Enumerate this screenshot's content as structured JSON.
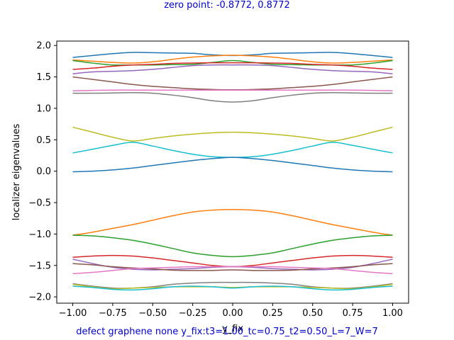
{
  "header": {
    "zero_point": "zero point: -0.8772, 0.8772"
  },
  "footer": {
    "caption": "defect graphene none y_fix:t3=1.00_tc=0.75_t2=0.50_L=7_W=7"
  },
  "colors": {
    "caption": "#0000cc"
  },
  "chart_data": {
    "type": "line",
    "title": "",
    "xlabel": "y_fix",
    "ylabel": "localizer eigenvalues",
    "xlim": [
      -1.1,
      1.1
    ],
    "ylim": [
      -2.1,
      2.07
    ],
    "xticks": [
      -1.0,
      -0.75,
      -0.5,
      -0.25,
      0.0,
      0.25,
      0.5,
      0.75,
      1.0
    ],
    "xtick_labels": [
      "−1.00",
      "−0.75",
      "−0.50",
      "−0.25",
      "0.00",
      "0.25",
      "0.50",
      "0.75",
      "1.00"
    ],
    "yticks": [
      -2.0,
      -1.5,
      -1.0,
      -0.5,
      0.0,
      0.5,
      1.0,
      1.5,
      2.0
    ],
    "ytick_labels": [
      "−2.0",
      "−1.5",
      "−1.0",
      "−0.5",
      "0.0",
      "0.5",
      "1.0",
      "1.5",
      "2.0"
    ],
    "grid": false,
    "legend": "none",
    "x": [
      -1.0,
      -0.875,
      -0.75,
      -0.625,
      -0.5,
      -0.375,
      -0.25,
      -0.125,
      0.0,
      0.125,
      0.25,
      0.375,
      0.5,
      0.625,
      0.75,
      0.875,
      1.0
    ],
    "series": [
      {
        "color": "#1f77b4",
        "values": [
          1.81,
          1.84,
          1.87,
          1.89,
          1.885,
          1.88,
          1.875,
          1.85,
          1.84,
          1.85,
          1.875,
          1.88,
          1.885,
          1.89,
          1.87,
          1.84,
          1.81
        ]
      },
      {
        "color": "#ff7f0e",
        "values": [
          1.77,
          1.75,
          1.73,
          1.72,
          1.74,
          1.78,
          1.815,
          1.835,
          1.845,
          1.835,
          1.815,
          1.78,
          1.74,
          1.72,
          1.73,
          1.75,
          1.77
        ]
      },
      {
        "color": "#2ca02c",
        "values": [
          1.76,
          1.72,
          1.69,
          1.69,
          1.69,
          1.695,
          1.7,
          1.73,
          1.76,
          1.73,
          1.7,
          1.695,
          1.69,
          1.69,
          1.69,
          1.72,
          1.76
        ]
      },
      {
        "color": "#d62728",
        "values": [
          1.62,
          1.64,
          1.67,
          1.69,
          1.7,
          1.715,
          1.72,
          1.725,
          1.725,
          1.725,
          1.72,
          1.715,
          1.7,
          1.69,
          1.67,
          1.64,
          1.62
        ]
      },
      {
        "color": "#9467bd",
        "values": [
          1.55,
          1.58,
          1.59,
          1.6,
          1.62,
          1.65,
          1.68,
          1.69,
          1.69,
          1.69,
          1.68,
          1.65,
          1.62,
          1.6,
          1.59,
          1.58,
          1.55
        ]
      },
      {
        "color": "#8c564b",
        "values": [
          1.5,
          1.46,
          1.42,
          1.38,
          1.35,
          1.33,
          1.31,
          1.3,
          1.295,
          1.3,
          1.31,
          1.33,
          1.35,
          1.38,
          1.42,
          1.46,
          1.5
        ]
      },
      {
        "color": "#e377c2",
        "values": [
          1.28,
          1.285,
          1.29,
          1.29,
          1.29,
          1.29,
          1.29,
          1.29,
          1.29,
          1.29,
          1.29,
          1.29,
          1.29,
          1.29,
          1.29,
          1.285,
          1.28
        ]
      },
      {
        "color": "#7f7f7f",
        "values": [
          1.24,
          1.24,
          1.245,
          1.25,
          1.24,
          1.21,
          1.17,
          1.12,
          1.1,
          1.12,
          1.17,
          1.21,
          1.24,
          1.25,
          1.245,
          1.24,
          1.24
        ]
      },
      {
        "color": "#bcbd22",
        "values": [
          0.7,
          0.62,
          0.54,
          0.48,
          0.52,
          0.56,
          0.59,
          0.61,
          0.62,
          0.61,
          0.59,
          0.56,
          0.52,
          0.48,
          0.54,
          0.62,
          0.7
        ]
      },
      {
        "color": "#17becf",
        "values": [
          0.29,
          0.35,
          0.41,
          0.46,
          0.4,
          0.33,
          0.27,
          0.23,
          0.22,
          0.23,
          0.27,
          0.33,
          0.4,
          0.46,
          0.41,
          0.35,
          0.29
        ]
      },
      {
        "color": "#1f77b4",
        "values": [
          -0.01,
          0.0,
          0.02,
          0.05,
          0.09,
          0.13,
          0.17,
          0.2,
          0.22,
          0.2,
          0.17,
          0.13,
          0.09,
          0.05,
          0.02,
          0.0,
          -0.01
        ]
      },
      {
        "color": "#ff7f0e",
        "values": [
          -1.02,
          -0.97,
          -0.91,
          -0.85,
          -0.78,
          -0.71,
          -0.65,
          -0.62,
          -0.61,
          -0.62,
          -0.65,
          -0.71,
          -0.78,
          -0.85,
          -0.91,
          -0.97,
          -1.02
        ]
      },
      {
        "color": "#2ca02c",
        "values": [
          -1.02,
          -1.03,
          -1.06,
          -1.1,
          -1.16,
          -1.23,
          -1.3,
          -1.34,
          -1.36,
          -1.34,
          -1.3,
          -1.23,
          -1.16,
          -1.1,
          -1.06,
          -1.03,
          -1.02
        ]
      },
      {
        "color": "#d62728",
        "values": [
          -1.37,
          -1.35,
          -1.34,
          -1.35,
          -1.38,
          -1.42,
          -1.46,
          -1.5,
          -1.52,
          -1.5,
          -1.46,
          -1.42,
          -1.38,
          -1.35,
          -1.34,
          -1.35,
          -1.37
        ]
      },
      {
        "color": "#9467bd",
        "values": [
          -1.4,
          -1.47,
          -1.53,
          -1.56,
          -1.57,
          -1.56,
          -1.55,
          -1.53,
          -1.52,
          -1.53,
          -1.55,
          -1.56,
          -1.57,
          -1.56,
          -1.53,
          -1.47,
          -1.4
        ]
      },
      {
        "color": "#8c564b",
        "values": [
          -1.47,
          -1.49,
          -1.52,
          -1.54,
          -1.555,
          -1.575,
          -1.58,
          -1.58,
          -1.57,
          -1.58,
          -1.58,
          -1.575,
          -1.555,
          -1.54,
          -1.52,
          -1.49,
          -1.47
        ]
      },
      {
        "color": "#e377c2",
        "values": [
          -1.63,
          -1.61,
          -1.58,
          -1.55,
          -1.54,
          -1.53,
          -1.52,
          -1.52,
          -1.52,
          -1.52,
          -1.52,
          -1.53,
          -1.54,
          -1.55,
          -1.58,
          -1.61,
          -1.63
        ]
      },
      {
        "color": "#7f7f7f",
        "values": [
          -1.79,
          -1.83,
          -1.86,
          -1.86,
          -1.84,
          -1.8,
          -1.78,
          -1.77,
          -1.77,
          -1.77,
          -1.78,
          -1.8,
          -1.84,
          -1.86,
          -1.86,
          -1.83,
          -1.79
        ]
      },
      {
        "color": "#bcbd22",
        "values": [
          -1.8,
          -1.84,
          -1.87,
          -1.86,
          -1.85,
          -1.84,
          -1.84,
          -1.84,
          -1.85,
          -1.84,
          -1.84,
          -1.84,
          -1.85,
          -1.86,
          -1.87,
          -1.84,
          -1.8
        ]
      },
      {
        "color": "#17becf",
        "values": [
          -1.83,
          -1.85,
          -1.88,
          -1.89,
          -1.87,
          -1.84,
          -1.83,
          -1.84,
          -1.86,
          -1.84,
          -1.83,
          -1.84,
          -1.87,
          -1.89,
          -1.88,
          -1.85,
          -1.83
        ]
      }
    ]
  }
}
